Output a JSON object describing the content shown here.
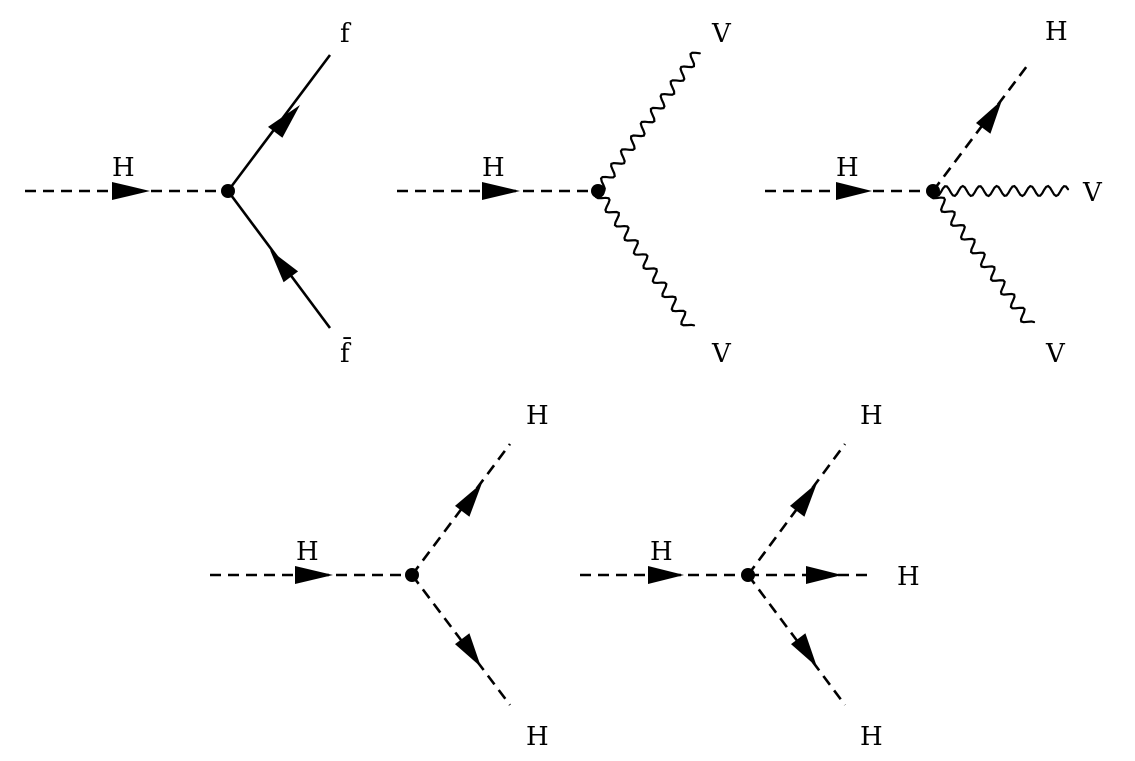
{
  "diagrams": [
    {
      "name": "higgs-to-fermion-pair",
      "labels": {
        "incoming": "H",
        "out_top": "f",
        "out_bottom": "f̄"
      }
    },
    {
      "name": "higgs-to-vector-pair",
      "labels": {
        "incoming": "H",
        "out_top": "V",
        "out_bottom": "V"
      }
    },
    {
      "name": "higgs-to-higgs-vector-vector",
      "labels": {
        "incoming": "H",
        "out_top": "H",
        "out_middle": "V",
        "out_bottom": "V"
      }
    },
    {
      "name": "higgs-trilinear",
      "labels": {
        "incoming": "H",
        "out_top": "H",
        "out_bottom": "H"
      }
    },
    {
      "name": "higgs-quartic",
      "labels": {
        "incoming": "H",
        "out_top": "H",
        "out_middle": "H",
        "out_bottom": "H"
      }
    }
  ],
  "line_styles": {
    "scalar": "dashed",
    "fermion": "solid",
    "vector": "wavy"
  },
  "colors": {
    "ink": "#000000",
    "background": "#ffffff"
  }
}
